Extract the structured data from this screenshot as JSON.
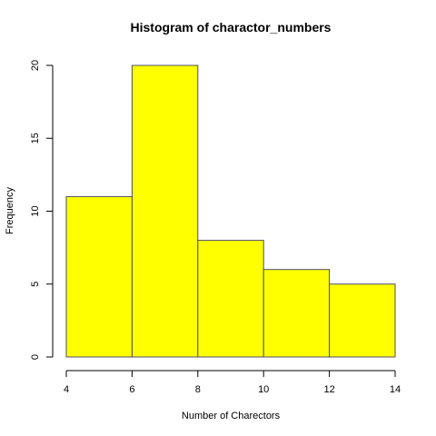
{
  "chart_data": {
    "type": "bar",
    "title": "Histogram of charactor_numbers",
    "xlabel": "Number of Charectors",
    "ylabel": "Frequency",
    "bins": [
      [
        4,
        6
      ],
      [
        6,
        8
      ],
      [
        8,
        10
      ],
      [
        10,
        12
      ],
      [
        12,
        14
      ]
    ],
    "values": [
      11,
      20,
      8,
      6,
      5
    ],
    "xlim": [
      4,
      14
    ],
    "ylim": [
      0,
      20
    ],
    "x_ticks": [
      4,
      6,
      8,
      10,
      12,
      14
    ],
    "y_ticks": [
      0,
      5,
      10,
      15,
      20
    ],
    "bar_color": "#ffff00",
    "grid": false,
    "legend": "none"
  }
}
